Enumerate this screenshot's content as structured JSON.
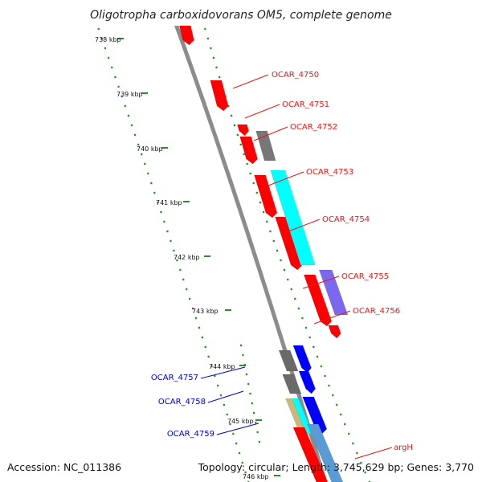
{
  "title": "Oligotropha carboxidovorans OM5, complete genome",
  "footer": {
    "accession": "Accession: NC_011386",
    "summary": "Topology: circular; Length: 3,745,629 bp; Genes: 3,770"
  },
  "colors": {
    "backbone": "#888888",
    "dotted_ruler": "#2e8b2e",
    "label_red": "#e41a1c",
    "label_blue": "#0000cc"
  },
  "ticks": [
    "738 kbp",
    "739 kbp",
    "740 kbp",
    "741 kbp",
    "742 kbp",
    "743 kbp",
    "744 kbp",
    "745 kbp",
    "746 kbp"
  ],
  "genes": [
    {
      "label": "OCAR_4750",
      "color": "#ff0000"
    },
    {
      "label": "OCAR_4751",
      "color": "#ff0000"
    },
    {
      "label": "OCAR_4752",
      "color": "#ff0000"
    },
    {
      "label": "OCAR_4753",
      "color": "#ff0000"
    },
    {
      "label": "OCAR_4754",
      "color": "#ff0000"
    },
    {
      "label": "OCAR_4755",
      "color": "#ff0000"
    },
    {
      "label": "OCAR_4756",
      "color": "#ff0000"
    },
    {
      "label": "OCAR_4757",
      "color": "#0000ff"
    },
    {
      "label": "OCAR_4758",
      "color": "#0000ff"
    },
    {
      "label": "OCAR_4759",
      "color": "#0000ff"
    },
    {
      "label": "argH",
      "color": "#ff0000"
    }
  ],
  "features": [
    {
      "color": "#777777"
    },
    {
      "color": "#00ffff"
    },
    {
      "color": "#7b68ee"
    },
    {
      "color": "#6a6a6a"
    },
    {
      "color": "#6a6a6a"
    },
    {
      "color": "#c8b97a"
    },
    {
      "color": "#00ffff"
    },
    {
      "color": "#5b9bd5"
    }
  ]
}
